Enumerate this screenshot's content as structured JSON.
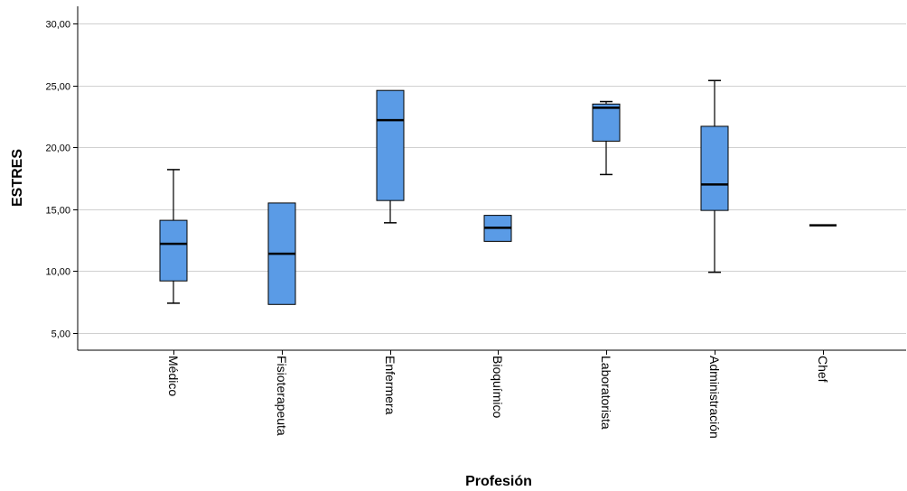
{
  "chart_data": {
    "type": "boxplot",
    "xlabel": "Profesión",
    "ylabel": "ESTRES",
    "ylim": [
      3.6,
      31.4
    ],
    "yticks": [
      "5,00",
      "10,00",
      "15,00",
      "20,00",
      "25,00",
      "30,00"
    ],
    "ytick_values": [
      5,
      10,
      15,
      20,
      25,
      30
    ],
    "grid": true,
    "box_color": "#5A9BE6",
    "categories": [
      "Médico",
      "Fisioterapeuta",
      "Enfermera",
      "Bioquímico",
      "Laboratorista",
      "Administración",
      "Chef"
    ],
    "boxes": [
      {
        "min": 7.4,
        "q1": 9.2,
        "median": 12.2,
        "q3": 14.1,
        "max": 18.2
      },
      {
        "min": 7.3,
        "q1": 7.3,
        "median": 11.4,
        "q3": 15.5,
        "max": 15.5
      },
      {
        "min": 13.9,
        "q1": 15.7,
        "median": 22.2,
        "q3": 24.6,
        "max": 24.6
      },
      {
        "min": 12.4,
        "q1": 12.4,
        "median": 13.5,
        "q3": 14.5,
        "max": 14.5
      },
      {
        "min": 17.8,
        "q1": 20.5,
        "median": 23.2,
        "q3": 23.5,
        "max": 23.7
      },
      {
        "min": 9.9,
        "q1": 14.9,
        "median": 17.0,
        "q3": 21.7,
        "max": 25.4
      },
      {
        "min": 13.7,
        "q1": 13.7,
        "median": 13.7,
        "q3": 13.7,
        "max": 13.7
      }
    ]
  }
}
